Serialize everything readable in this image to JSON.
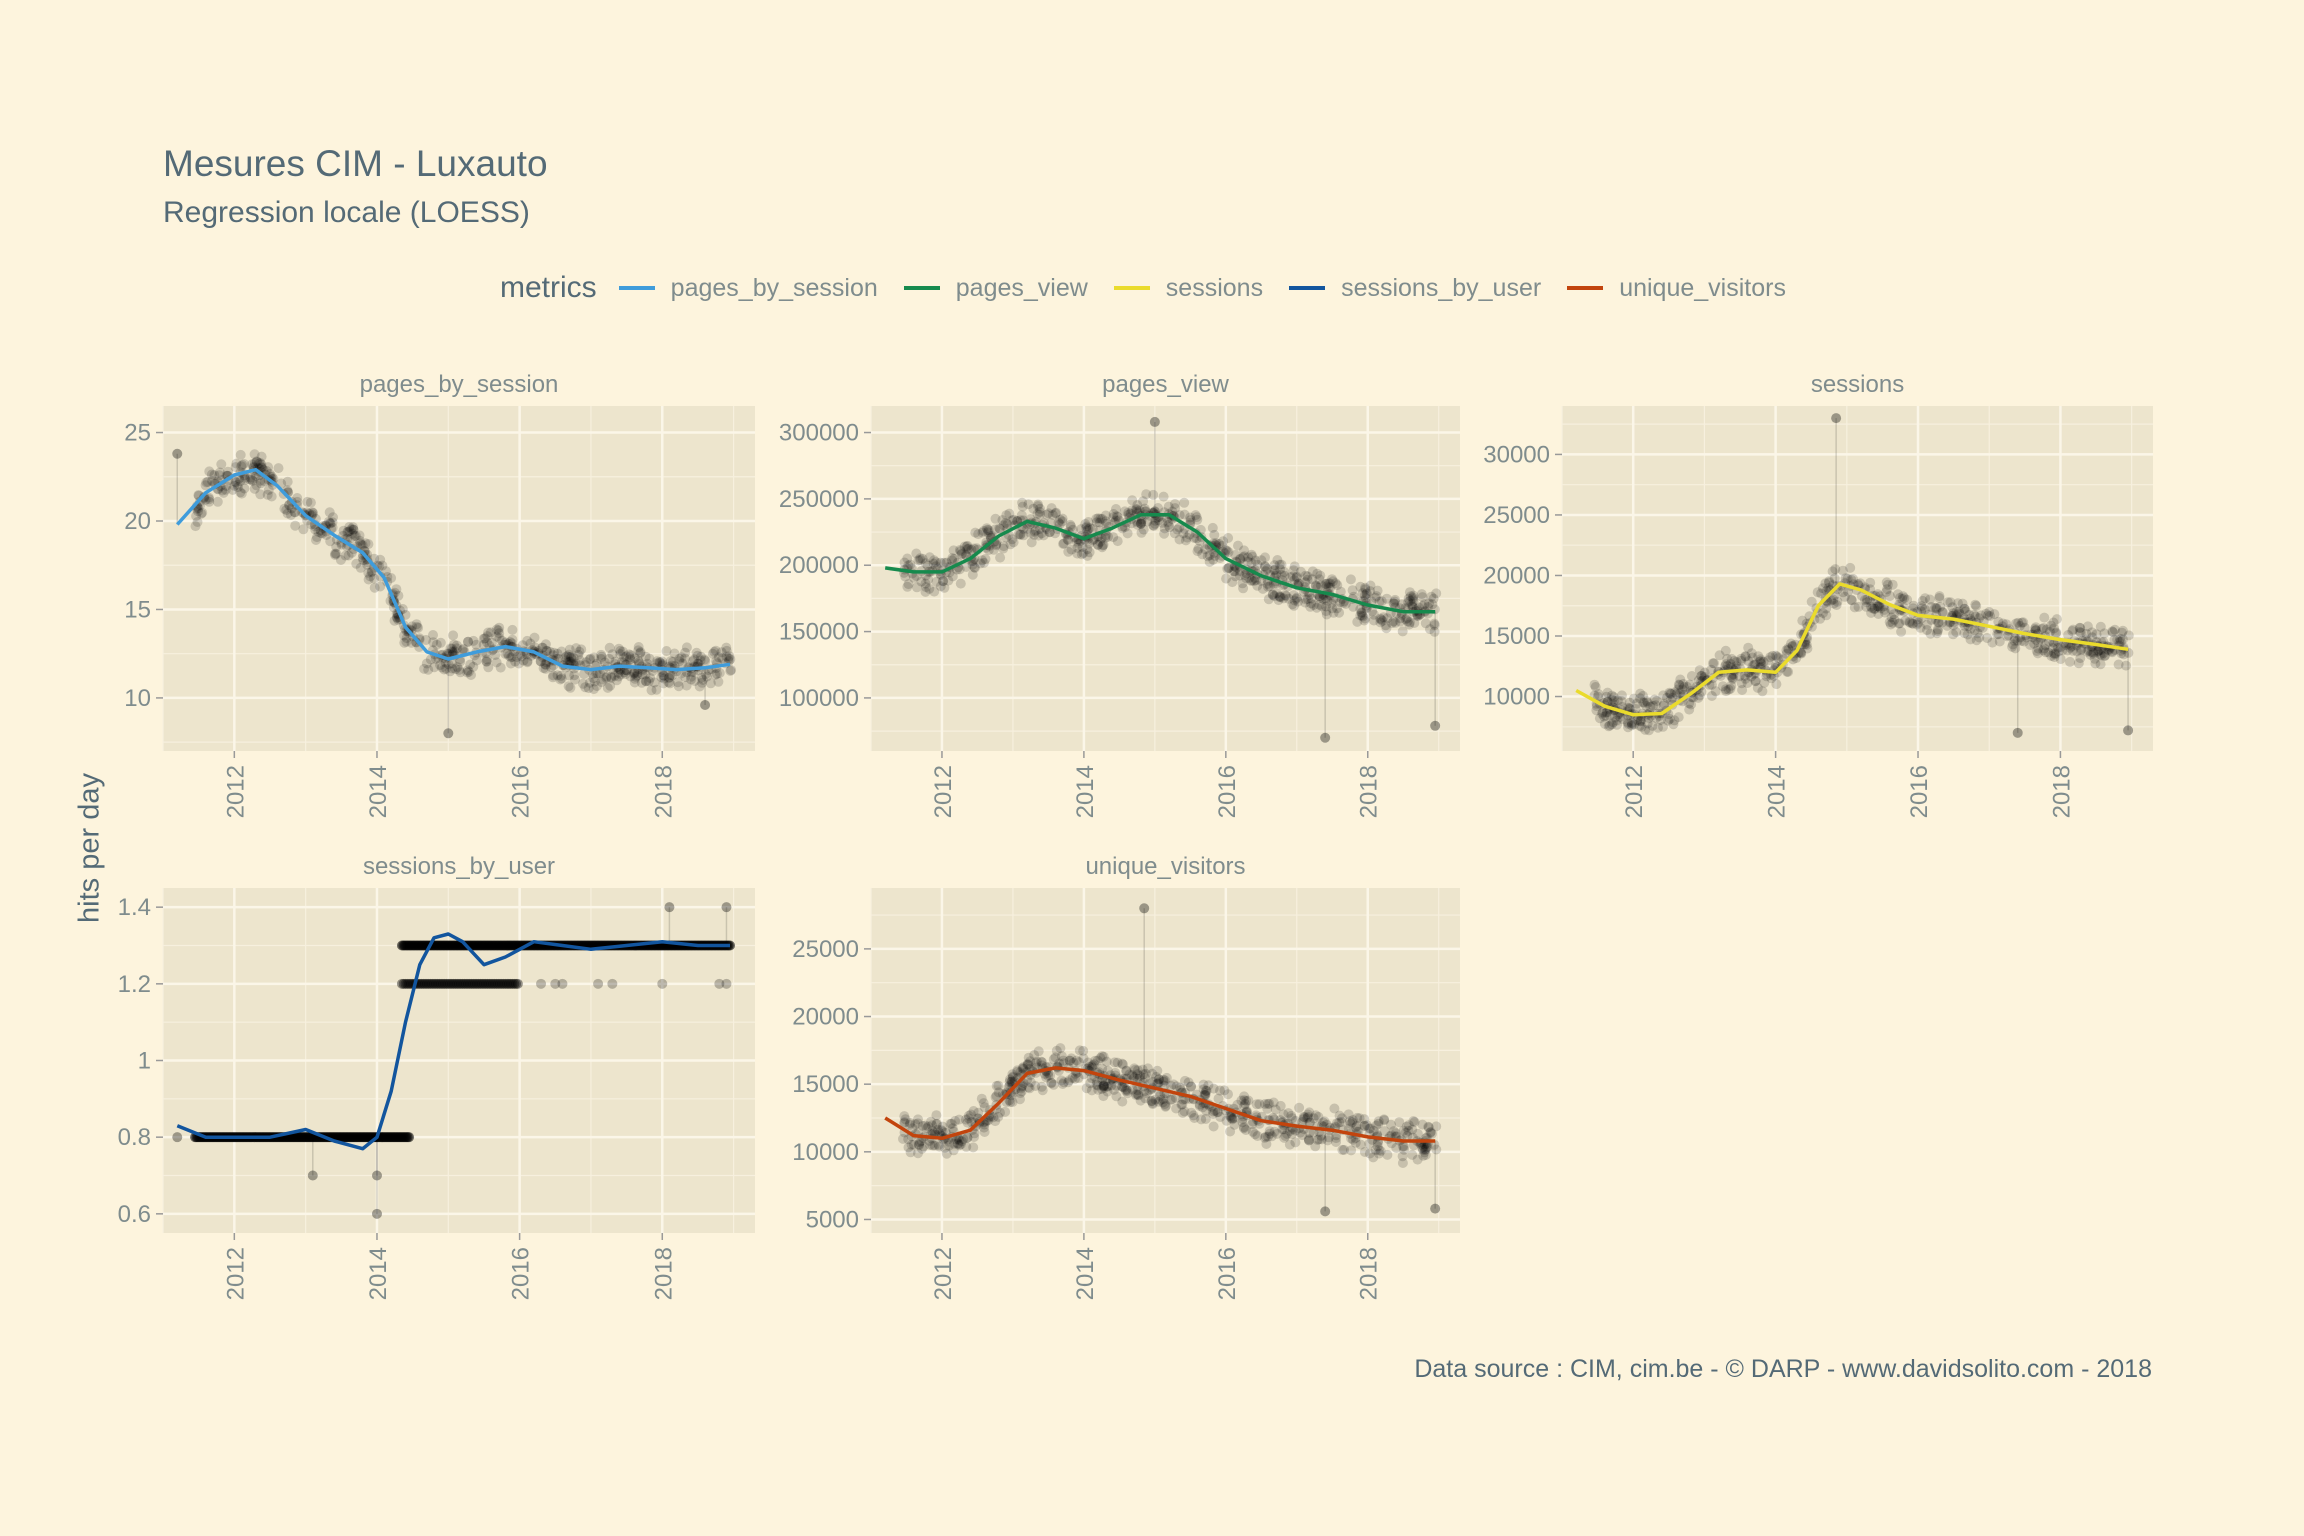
{
  "title": "Mesures CIM - Luxauto",
  "subtitle": "Regression locale (LOESS)",
  "caption": "Data source : CIM, cim.be - © DARP - www.davidsolito.com - 2018",
  "y_axis_title": "hits per day",
  "legend": {
    "title": "metrics",
    "position": "top",
    "items": [
      {
        "label": "pages_by_session",
        "color": "#3F9CDB"
      },
      {
        "label": "pages_view",
        "color": "#168A4D"
      },
      {
        "label": "sessions",
        "color": "#EADB2C"
      },
      {
        "label": "sessions_by_user",
        "color": "#12559E"
      },
      {
        "label": "unique_visitors",
        "color": "#C2440D"
      }
    ]
  },
  "chart_data": [
    {
      "type": "line",
      "facet": "pages_by_session",
      "color": "#3F9CDB",
      "xlim": [
        2011.0,
        2019.3
      ],
      "ylim": [
        7,
        26.5
      ],
      "x_ticks": [
        2012,
        2014,
        2016,
        2018
      ],
      "y_ticks": [
        10,
        15,
        20,
        25
      ],
      "grid": true,
      "x": [
        2011.2,
        2011.6,
        2012.0,
        2012.3,
        2012.6,
        2013.0,
        2013.4,
        2013.8,
        2014.1,
        2014.4,
        2014.7,
        2015.0,
        2015.4,
        2015.8,
        2016.2,
        2016.6,
        2017.0,
        2017.4,
        2017.8,
        2018.2,
        2018.6,
        2018.95
      ],
      "y": [
        19.8,
        21.6,
        22.6,
        22.9,
        22.0,
        20.3,
        19.2,
        18.2,
        16.8,
        14.0,
        12.6,
        12.2,
        12.6,
        12.9,
        12.6,
        11.8,
        11.6,
        11.8,
        11.7,
        11.6,
        11.7,
        11.9
      ],
      "points": {
        "color": "#000000",
        "min": 8.0,
        "max": 25.5,
        "outliers": [
          [
            2011.2,
            23.8
          ],
          [
            2015.0,
            8.0
          ],
          [
            2018.6,
            9.6
          ]
        ]
      }
    },
    {
      "type": "line",
      "facet": "pages_view",
      "color": "#168A4D",
      "xlim": [
        2011.0,
        2019.3
      ],
      "ylim": [
        60000,
        320000
      ],
      "x_ticks": [
        2012,
        2014,
        2016,
        2018
      ],
      "y_ticks": [
        100000,
        150000,
        200000,
        250000,
        300000
      ],
      "grid": true,
      "x": [
        2011.2,
        2011.6,
        2012.0,
        2012.4,
        2012.8,
        2013.2,
        2013.6,
        2014.0,
        2014.4,
        2014.8,
        2015.2,
        2015.6,
        2016.0,
        2016.5,
        2017.0,
        2017.5,
        2018.0,
        2018.5,
        2018.95
      ],
      "y": [
        198000,
        195000,
        195000,
        205000,
        222000,
        233000,
        228000,
        220000,
        228000,
        238000,
        238000,
        225000,
        205000,
        192000,
        183000,
        178000,
        170000,
        165000,
        165000
      ],
      "points": {
        "color": "#000000",
        "min": 70000,
        "max": 308000,
        "outliers": [
          [
            2015.0,
            308000
          ],
          [
            2017.4,
            70000
          ],
          [
            2018.95,
            79000
          ]
        ]
      }
    },
    {
      "type": "line",
      "facet": "sessions",
      "color": "#EADB2C",
      "xlim": [
        2011.0,
        2019.3
      ],
      "ylim": [
        5500,
        34000
      ],
      "x_ticks": [
        2012,
        2014,
        2016,
        2018
      ],
      "y_ticks": [
        10000,
        15000,
        20000,
        25000,
        30000
      ],
      "grid": true,
      "x": [
        2011.2,
        2011.6,
        2012.0,
        2012.4,
        2012.8,
        2013.2,
        2013.6,
        2014.0,
        2014.3,
        2014.6,
        2014.9,
        2015.2,
        2015.6,
        2016.0,
        2016.5,
        2017.0,
        2017.5,
        2018.0,
        2018.5,
        2018.95
      ],
      "y": [
        10500,
        9200,
        8500,
        8600,
        10200,
        12000,
        12200,
        12000,
        13800,
        17500,
        19300,
        18800,
        17600,
        16700,
        16400,
        15800,
        15200,
        14700,
        14300,
        13900
      ],
      "points": {
        "color": "#000000",
        "min": 7000,
        "max": 33000,
        "outliers": [
          [
            2014.85,
            33000
          ],
          [
            2017.4,
            7000
          ],
          [
            2018.95,
            7200
          ]
        ]
      }
    },
    {
      "type": "line",
      "facet": "sessions_by_user",
      "color": "#12559E",
      "xlim": [
        2011.0,
        2019.3
      ],
      "ylim": [
        0.55,
        1.45
      ],
      "x_ticks": [
        2012,
        2014,
        2016,
        2018
      ],
      "y_ticks": [
        0.6,
        0.8,
        1.0,
        1.2,
        1.4
      ],
      "grid": true,
      "x": [
        2011.2,
        2011.6,
        2012.0,
        2012.5,
        2013.0,
        2013.4,
        2013.8,
        2014.0,
        2014.2,
        2014.4,
        2014.6,
        2014.8,
        2015.0,
        2015.2,
        2015.5,
        2015.8,
        2016.2,
        2016.6,
        2017.0,
        2017.5,
        2018.0,
        2018.5,
        2018.95
      ],
      "y": [
        0.83,
        0.8,
        0.8,
        0.8,
        0.82,
        0.79,
        0.77,
        0.8,
        0.92,
        1.1,
        1.25,
        1.32,
        1.33,
        1.31,
        1.25,
        1.27,
        1.31,
        1.3,
        1.29,
        1.3,
        1.31,
        1.3,
        1.3
      ],
      "points": {
        "color": "#000000",
        "levels": [
          0.8,
          1.2,
          1.3
        ],
        "outliers": [
          [
            2011.2,
            0.8
          ],
          [
            2013.1,
            0.7
          ],
          [
            2014.0,
            0.6
          ],
          [
            2014.0,
            0.7
          ],
          [
            2018.1,
            1.4
          ],
          [
            2018.9,
            1.4
          ]
        ]
      }
    },
    {
      "type": "line",
      "facet": "unique_visitors",
      "color": "#C2440D",
      "xlim": [
        2011.0,
        2019.3
      ],
      "ylim": [
        4000,
        29500
      ],
      "x_ticks": [
        2012,
        2014,
        2016,
        2018
      ],
      "y_ticks": [
        5000,
        10000,
        15000,
        20000,
        25000
      ],
      "grid": true,
      "x": [
        2011.2,
        2011.6,
        2012.0,
        2012.4,
        2012.8,
        2013.2,
        2013.6,
        2014.0,
        2014.5,
        2015.0,
        2015.5,
        2016.0,
        2016.5,
        2017.0,
        2017.5,
        2018.0,
        2018.5,
        2018.95
      ],
      "y": [
        12500,
        11200,
        11000,
        11600,
        13600,
        15800,
        16200,
        16000,
        15300,
        14700,
        14100,
        13200,
        12300,
        11900,
        11600,
        11100,
        10800,
        10800
      ],
      "points": {
        "color": "#000000",
        "min": 5600,
        "max": 28000,
        "outliers": [
          [
            2014.85,
            28000
          ],
          [
            2017.4,
            5600
          ],
          [
            2018.95,
            5800
          ]
        ]
      }
    }
  ]
}
